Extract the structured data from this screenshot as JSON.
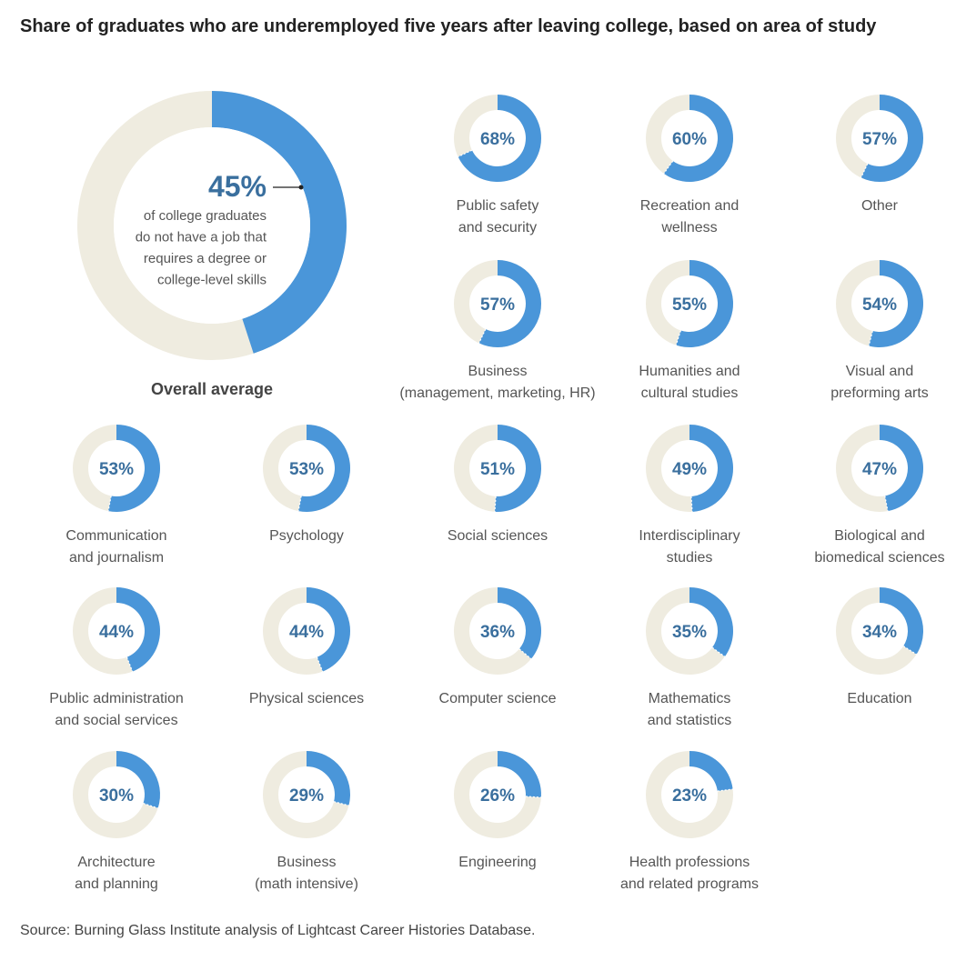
{
  "title": "Share of graduates who are underemployed five years after leaving college, based on area of study",
  "source": "Source: Burning Glass Institute analysis of Lightcast Career Histories Database.",
  "colors": {
    "filled": "#4a96d9",
    "remainder": "#efece0",
    "value_text": "#3a6f9e",
    "label_text": "#555555"
  },
  "chart_data": {
    "type": "pie",
    "style": "donut",
    "overall": {
      "value": 45,
      "value_label": "45%",
      "annotation": [
        "of college graduates",
        "do not have a job that",
        "requires a degree or",
        "college-level skills"
      ],
      "label": "Overall average"
    },
    "items": [
      {
        "label": [
          "Public safety",
          "and security"
        ],
        "value": 68,
        "value_label": "68%"
      },
      {
        "label": [
          "Recreation and",
          "wellness"
        ],
        "value": 60,
        "value_label": "60%"
      },
      {
        "label": [
          "Other"
        ],
        "value": 57,
        "value_label": "57%"
      },
      {
        "label": [
          "Business",
          "(management, marketing, HR)"
        ],
        "value": 57,
        "value_label": "57%"
      },
      {
        "label": [
          "Humanities and",
          "cultural studies"
        ],
        "value": 55,
        "value_label": "55%"
      },
      {
        "label": [
          "Visual and",
          "preforming arts"
        ],
        "value": 54,
        "value_label": "54%"
      },
      {
        "label": [
          "Communication",
          "and journalism"
        ],
        "value": 53,
        "value_label": "53%"
      },
      {
        "label": [
          "Psychology"
        ],
        "value": 53,
        "value_label": "53%"
      },
      {
        "label": [
          "Social sciences"
        ],
        "value": 51,
        "value_label": "51%"
      },
      {
        "label": [
          "Interdisciplinary",
          "studies"
        ],
        "value": 49,
        "value_label": "49%"
      },
      {
        "label": [
          "Biological and",
          "biomedical sciences"
        ],
        "value": 47,
        "value_label": "47%"
      },
      {
        "label": [
          "Public administration",
          "and social services"
        ],
        "value": 44,
        "value_label": "44%"
      },
      {
        "label": [
          "Physical sciences"
        ],
        "value": 44,
        "value_label": "44%"
      },
      {
        "label": [
          "Computer science"
        ],
        "value": 36,
        "value_label": "36%"
      },
      {
        "label": [
          "Mathematics",
          "and statistics"
        ],
        "value": 35,
        "value_label": "35%"
      },
      {
        "label": [
          "Education"
        ],
        "value": 34,
        "value_label": "34%"
      },
      {
        "label": [
          "Architecture",
          "and planning"
        ],
        "value": 30,
        "value_label": "30%"
      },
      {
        "label": [
          "Business",
          "(math intensive)"
        ],
        "value": 29,
        "value_label": "29%"
      },
      {
        "label": [
          "Engineering"
        ],
        "value": 26,
        "value_label": "26%"
      },
      {
        "label": [
          "Health professions",
          "and related programs"
        ],
        "value": 23,
        "value_label": "23%"
      }
    ]
  }
}
